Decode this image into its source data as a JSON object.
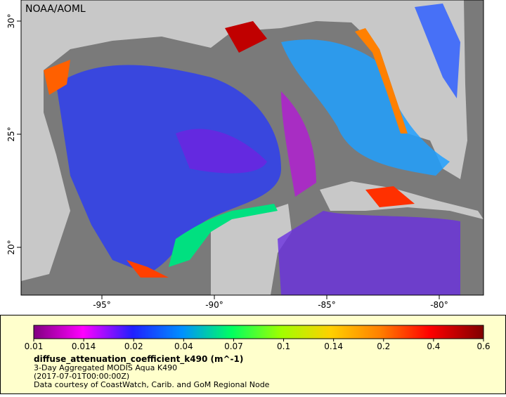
{
  "map": {
    "label": "NOAA/AOML",
    "lon_ticks": [
      "-95°",
      "-90°",
      "-85°",
      "-80°"
    ],
    "lat_ticks": [
      "30°",
      "25°",
      "20°"
    ]
  },
  "legend": {
    "colorbar_ticks": [
      "0.01",
      "0.014",
      "0.02",
      "0.04",
      "0.07",
      "0.1",
      "0.14",
      "0.2",
      "0.4",
      "0.6"
    ],
    "variable": "diffuse_attenuation_coefficient_k490 (m^-1)",
    "lines": [
      "3-Day Aggregated MODIS Aqua K490",
      "(2017-07-01T00:00:00Z)",
      "Data courtesy of CoastWatch, Carib. and GoM Regional Node"
    ]
  }
}
